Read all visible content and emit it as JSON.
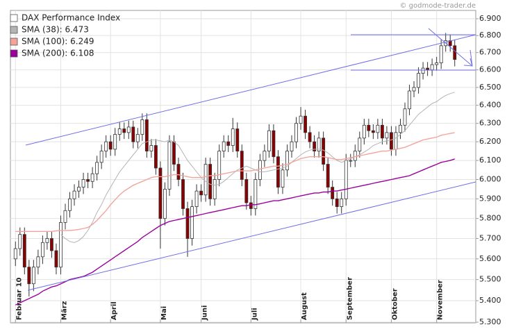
{
  "chart_data": {
    "type": "candlestick",
    "name": "DAX Performance Index",
    "source": "© godmode-trader.de",
    "log_scale": true,
    "grid": true,
    "legend_position": "upper-left",
    "up_color": "#ffffff",
    "down_color": "#8b0000",
    "categories": [
      "Februar 10",
      null,
      null,
      null,
      null,
      null,
      null,
      null,
      null,
      null,
      "März",
      null,
      null,
      null,
      null,
      null,
      null,
      null,
      null,
      null,
      null,
      "April",
      null,
      null,
      null,
      null,
      null,
      null,
      null,
      null,
      null,
      null,
      "Mai",
      null,
      null,
      null,
      null,
      null,
      null,
      null,
      null,
      "Juni",
      null,
      null,
      null,
      null,
      null,
      null,
      null,
      null,
      null,
      null,
      "Juli",
      null,
      null,
      null,
      null,
      null,
      null,
      null,
      null,
      null,
      null,
      "August",
      null,
      null,
      null,
      null,
      null,
      null,
      null,
      null,
      null,
      "September",
      null,
      null,
      null,
      null,
      null,
      null,
      null,
      null,
      null,
      "Oktober",
      null,
      null,
      null,
      null,
      null,
      null,
      null,
      null,
      null,
      "November",
      null,
      null,
      null,
      null
    ],
    "open": [
      5600,
      5650,
      5720,
      5560,
      5480,
      5560,
      5610,
      5680,
      5700,
      5640,
      5560,
      5780,
      5840,
      5900,
      5940,
      5960,
      6000,
      5990,
      6030,
      6090,
      6150,
      6200,
      6160,
      6240,
      6270,
      6250,
      6280,
      6200,
      6240,
      6320,
      6150,
      6180,
      6060,
      5800,
      5950,
      6200,
      6080,
      6000,
      5850,
      5700,
      5860,
      5940,
      5920,
      6080,
      5900,
      6000,
      6150,
      6200,
      6180,
      6270,
      6150,
      6000,
      5880,
      5850,
      6000,
      6100,
      6150,
      6260,
      6120,
      5960,
      6050,
      6150,
      6200,
      6300,
      6340,
      6250,
      6200,
      6150,
      6220,
      6080,
      5960,
      5900,
      5860,
      5900,
      6100,
      6100,
      6150,
      6220,
      6290,
      6260,
      6250,
      6290,
      6220,
      6250,
      6160,
      6250,
      6290,
      6380,
      6480,
      6500,
      6580,
      6610,
      6600,
      6630,
      6640,
      6740,
      6770,
      6740
    ],
    "high": [
      5685,
      5755,
      5755,
      5595,
      5595,
      5645,
      5715,
      5735,
      5735,
      5675,
      5815,
      5875,
      5935,
      5975,
      5995,
      6035,
      6035,
      6065,
      6125,
      6185,
      6235,
      6235,
      6275,
      6305,
      6305,
      6315,
      6315,
      6275,
      6355,
      6355,
      6215,
      6215,
      6095,
      5985,
      6235,
      6235,
      6115,
      6035,
      5885,
      5895,
      5975,
      5975,
      6115,
      6115,
      6035,
      6185,
      6235,
      6235,
      6330,
      6305,
      6185,
      6035,
      5915,
      6035,
      6135,
      6185,
      6295,
      6295,
      6155,
      6085,
      6185,
      6235,
      6335,
      6390,
      6375,
      6285,
      6235,
      6255,
      6255,
      6115,
      5995,
      5935,
      5935,
      6135,
      6135,
      6185,
      6255,
      6325,
      6325,
      6295,
      6325,
      6325,
      6285,
      6285,
      6285,
      6325,
      6415,
      6515,
      6535,
      6615,
      6645,
      6645,
      6665,
      6675,
      6775,
      6815,
      6805,
      6775
    ],
    "low": [
      5565,
      5615,
      5525,
      5420,
      5445,
      5525,
      5575,
      5645,
      5605,
      5525,
      5525,
      5745,
      5805,
      5865,
      5905,
      5925,
      5955,
      5955,
      5995,
      6055,
      6115,
      6125,
      6125,
      6205,
      6215,
      6215,
      6165,
      6165,
      6205,
      6115,
      6115,
      6025,
      5650,
      5765,
      5915,
      6045,
      5965,
      5815,
      5610,
      5665,
      5825,
      5885,
      5885,
      5865,
      5865,
      5965,
      6115,
      6145,
      6145,
      6115,
      5965,
      5845,
      5815,
      5815,
      5965,
      6065,
      6115,
      6085,
      5925,
      5925,
      6015,
      6115,
      6165,
      6265,
      6215,
      6165,
      6115,
      6115,
      6045,
      5925,
      5865,
      5825,
      5825,
      5865,
      6065,
      6065,
      6115,
      6185,
      6225,
      6215,
      6215,
      6185,
      6185,
      6125,
      6125,
      6215,
      6255,
      6345,
      6445,
      6465,
      6545,
      6565,
      6565,
      6595,
      6605,
      6705,
      6705,
      6620
    ],
    "close": [
      5650,
      5720,
      5560,
      5480,
      5560,
      5610,
      5680,
      5700,
      5640,
      5560,
      5780,
      5840,
      5900,
      5940,
      5960,
      6000,
      5990,
      6030,
      6090,
      6150,
      6200,
      6160,
      6240,
      6270,
      6250,
      6280,
      6200,
      6240,
      6320,
      6150,
      6180,
      6060,
      5800,
      5950,
      6200,
      6080,
      6000,
      5850,
      5700,
      5860,
      5940,
      5920,
      6080,
      5900,
      6000,
      6150,
      6200,
      6180,
      6270,
      6150,
      6000,
      5880,
      5850,
      6000,
      6100,
      6150,
      6260,
      6120,
      5960,
      6050,
      6150,
      6200,
      6300,
      6340,
      6250,
      6200,
      6150,
      6220,
      6080,
      5960,
      5900,
      5860,
      5900,
      6100,
      6100,
      6150,
      6220,
      6290,
      6260,
      6250,
      6290,
      6220,
      6250,
      6160,
      6250,
      6290,
      6380,
      6480,
      6500,
      6580,
      6610,
      6600,
      6630,
      6640,
      6740,
      6770,
      6740,
      6660
    ],
    "series": [
      {
        "name": "SMA (38): 6.473",
        "color": "#b4b4b4",
        "values": [
          null,
          null,
          null,
          null,
          null,
          null,
          null,
          null,
          null,
          null,
          5720,
          5700,
          5685,
          5680,
          5690,
          5710,
          5740,
          5780,
          5830,
          5870,
          5920,
          5960,
          6000,
          6040,
          6070,
          6100,
          6130,
          6160,
          6190,
          6200,
          6210,
          6210,
          6205,
          6200,
          6210,
          6200,
          6180,
          6140,
          6100,
          6070,
          6040,
          6010,
          5990,
          5975,
          5970,
          5975,
          5990,
          6010,
          6030,
          6050,
          6060,
          6070,
          6060,
          6050,
          6040,
          6040,
          6045,
          6050,
          6055,
          6060,
          6070,
          6090,
          6110,
          6130,
          6145,
          6155,
          6160,
          6160,
          6155,
          6140,
          6120,
          6100,
          6090,
          6100,
          6110,
          6120,
          6130,
          6145,
          6160,
          6180,
          6190,
          6200,
          6205,
          6210,
          6220,
          6240,
          6260,
          6290,
          6320,
          6350,
          6370,
          6390,
          6410,
          6420,
          6440,
          6455,
          6465,
          6473
        ]
      },
      {
        "name": "SMA (100): 6.249",
        "color": "#f4a39a",
        "values": [
          5735,
          5735,
          5735,
          5735,
          5735,
          5735,
          5735,
          5735,
          5735,
          5738,
          5740,
          5740,
          5740,
          5742,
          5745,
          5750,
          5755,
          5770,
          5790,
          5815,
          5840,
          5870,
          5895,
          5920,
          5940,
          5955,
          5970,
          5980,
          5990,
          6000,
          6010,
          6015,
          6015,
          6015,
          6020,
          6025,
          6025,
          6020,
          6015,
          6010,
          6010,
          6010,
          6015,
          6020,
          6020,
          6025,
          6030,
          6035,
          6040,
          6045,
          6045,
          6045,
          6045,
          6050,
          6055,
          6060,
          6065,
          6070,
          6070,
          6075,
          6080,
          6090,
          6100,
          6110,
          6115,
          6120,
          6120,
          6120,
          6120,
          6115,
          6110,
          6105,
          6105,
          6110,
          6115,
          6120,
          6125,
          6130,
          6135,
          6140,
          6145,
          6150,
          6150,
          6155,
          6160,
          6165,
          6170,
          6180,
          6190,
          6200,
          6210,
          6215,
          6220,
          6225,
          6235,
          6240,
          6245,
          6249
        ]
      },
      {
        "name": "SMA (200): 6.108",
        "color": "#990099",
        "values": [
          5380,
          5390,
          5400,
          5410,
          5420,
          5430,
          5445,
          5455,
          5465,
          5470,
          5480,
          5490,
          5500,
          5505,
          5510,
          5515,
          5525,
          5535,
          5550,
          5565,
          5580,
          5595,
          5610,
          5625,
          5640,
          5655,
          5670,
          5685,
          5705,
          5720,
          5735,
          5750,
          5765,
          5775,
          5785,
          5790,
          5795,
          5800,
          5805,
          5810,
          5815,
          5820,
          5825,
          5830,
          5835,
          5840,
          5845,
          5850,
          5855,
          5860,
          5865,
          5865,
          5870,
          5870,
          5875,
          5880,
          5885,
          5890,
          5890,
          5895,
          5900,
          5905,
          5910,
          5915,
          5920,
          5925,
          5930,
          5930,
          5935,
          5935,
          5940,
          5940,
          5945,
          5950,
          5955,
          5960,
          5965,
          5970,
          5975,
          5980,
          5985,
          5990,
          5995,
          6000,
          6005,
          6010,
          6015,
          6020,
          6030,
          6040,
          6050,
          6060,
          6070,
          6080,
          6090,
          6095,
          6100,
          6108
        ]
      }
    ],
    "ylim": [
      5300,
      6950
    ],
    "yticks": [
      {
        "value": 5300,
        "label": "5.300"
      },
      {
        "value": 5400,
        "label": "5.400"
      },
      {
        "value": 5500,
        "label": "5.500"
      },
      {
        "value": 5600,
        "label": "5.600"
      },
      {
        "value": 5700,
        "label": "5.700"
      },
      {
        "value": 5800,
        "label": "5.800"
      },
      {
        "value": 5900,
        "label": "5.900"
      },
      {
        "value": 6000,
        "label": "6.000"
      },
      {
        "value": 6100,
        "label": "6.100"
      },
      {
        "value": 6200,
        "label": "6.200"
      },
      {
        "value": 6300,
        "label": "6.300"
      },
      {
        "value": 6400,
        "label": "6.400"
      },
      {
        "value": 6500,
        "label": "6.500"
      },
      {
        "value": 6600,
        "label": "6.600"
      },
      {
        "value": 6700,
        "label": "6.700"
      },
      {
        "value": 6800,
        "label": "6.800"
      },
      {
        "value": 6900,
        "label": "6.900"
      }
    ]
  }
}
